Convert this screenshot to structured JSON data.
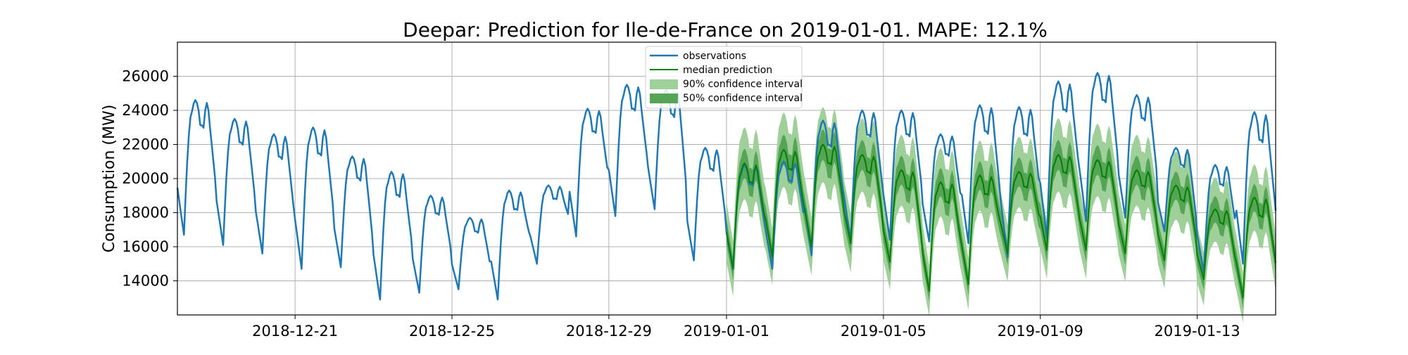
{
  "chart_data": {
    "type": "line",
    "title": "Deepar: Prediction for Ile-de-France on 2019-01-01. MAPE: 12.1%",
    "xlabel": "",
    "ylabel": "Consumption (MW)",
    "grid": true,
    "legend_position": "top-center",
    "x_ticks": [
      "2018-12-21",
      "2018-12-25",
      "2018-12-29",
      "2019-01-01",
      "2019-01-05",
      "2019-01-09",
      "2019-01-13"
    ],
    "y_ticks": [
      14000,
      16000,
      18000,
      20000,
      22000,
      24000,
      26000
    ],
    "xlim": [
      "2018-12-18",
      "2019-01-15"
    ],
    "ylim": [
      12000,
      28000
    ],
    "forecast_start": "2019-01-01",
    "colors": {
      "observations": "#1f77b4",
      "median": "#008000",
      "ci90": "#9fd09a",
      "ci50": "#56a556"
    },
    "series": [
      {
        "name": "observations",
        "kind": "line",
        "daily_peak_hour": 12,
        "trough_hour": 4,
        "daily": [
          [
            "2018-12-18",
            16700,
            24600
          ],
          [
            "2018-12-19",
            16100,
            23500
          ],
          [
            "2018-12-20",
            15600,
            22600
          ],
          [
            "2018-12-21",
            14700,
            23000
          ],
          [
            "2018-12-22",
            14800,
            21300
          ],
          [
            "2018-12-23",
            12900,
            20400
          ],
          [
            "2018-12-24",
            13300,
            19000
          ],
          [
            "2018-12-25",
            13500,
            17700
          ],
          [
            "2018-12-26",
            12900,
            19300
          ],
          [
            "2018-12-27",
            15000,
            19600
          ],
          [
            "2018-12-28",
            16600,
            24100
          ],
          [
            "2018-12-29",
            17800,
            25500
          ],
          [
            "2018-12-30",
            18200,
            25200
          ],
          [
            "2018-12-31",
            15200,
            21800
          ],
          [
            "2019-01-01",
            14700,
            20800
          ],
          [
            "2019-01-02",
            14700,
            21000
          ],
          [
            "2019-01-03",
            15500,
            23400
          ],
          [
            "2019-01-04",
            16200,
            24000
          ],
          [
            "2019-01-05",
            16400,
            24000
          ],
          [
            "2019-01-06",
            16300,
            22600
          ],
          [
            "2019-01-07",
            16200,
            24300
          ],
          [
            "2019-01-08",
            15400,
            24200
          ],
          [
            "2019-01-09",
            16500,
            25700
          ],
          [
            "2019-01-10",
            17500,
            26200
          ],
          [
            "2019-01-11",
            17700,
            24900
          ],
          [
            "2019-01-12",
            16900,
            21800
          ],
          [
            "2019-01-13",
            14500,
            20800
          ],
          [
            "2019-01-14",
            15000,
            23900
          ]
        ]
      },
      {
        "name": "median prediction",
        "kind": "line",
        "daily": [
          [
            "2019-01-01",
            14700,
            20900
          ],
          [
            "2019-01-02",
            15400,
            21700
          ],
          [
            "2019-01-03",
            16000,
            22000
          ],
          [
            "2019-01-04",
            16200,
            21400
          ],
          [
            "2019-01-05",
            15100,
            20500
          ],
          [
            "2019-01-06",
            13400,
            19800
          ],
          [
            "2019-01-07",
            13800,
            20200
          ],
          [
            "2019-01-08",
            15600,
            20400
          ],
          [
            "2019-01-09",
            15800,
            21400
          ],
          [
            "2019-01-10",
            15800,
            21100
          ],
          [
            "2019-01-11",
            15600,
            20500
          ],
          [
            "2019-01-12",
            15200,
            19600
          ],
          [
            "2019-01-13",
            14100,
            18200
          ],
          [
            "2019-01-14",
            13000,
            18900
          ]
        ]
      },
      {
        "name": "90% confidence interval",
        "kind": "band",
        "half_width": 2200
      },
      {
        "name": "50% confidence interval",
        "kind": "band",
        "half_width": 900
      }
    ]
  }
}
